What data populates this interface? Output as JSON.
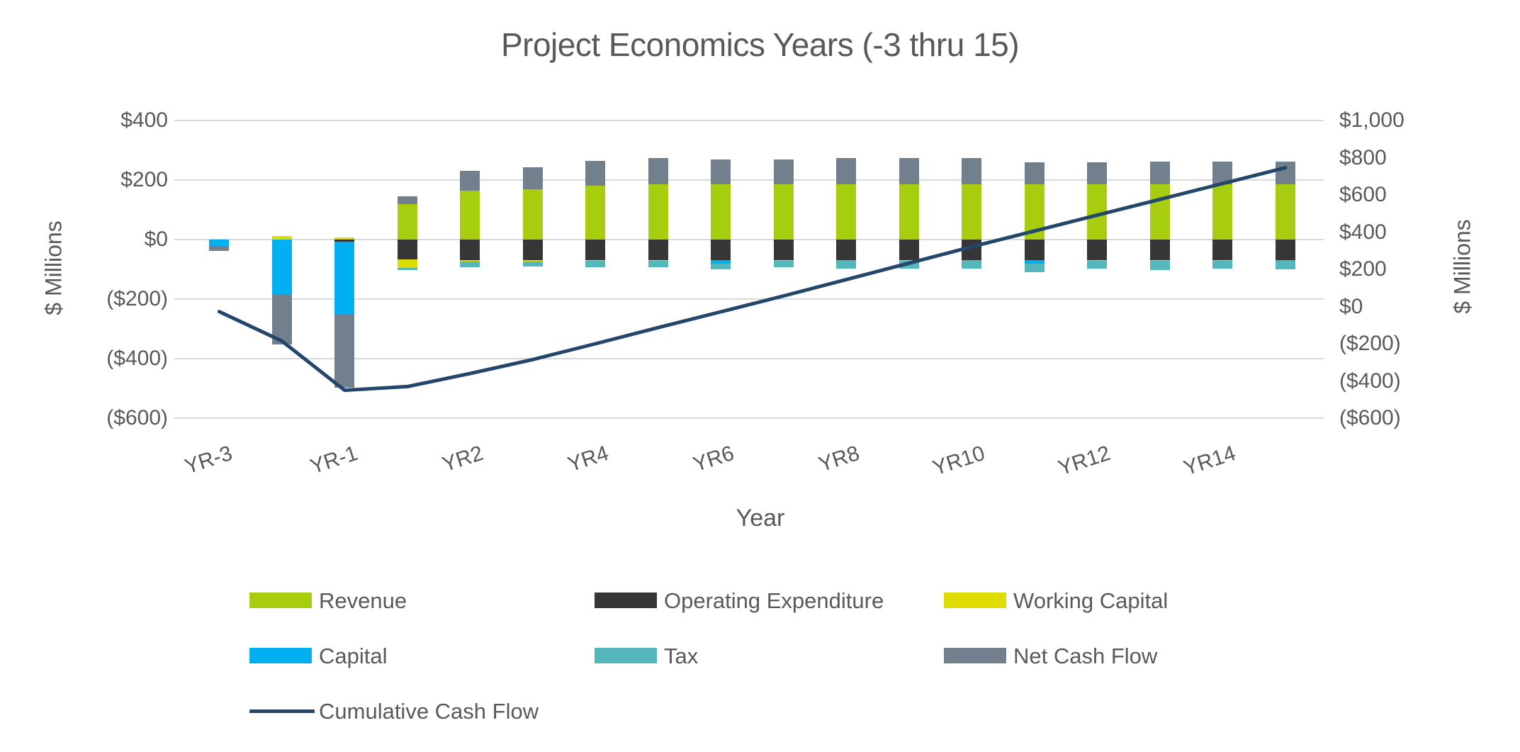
{
  "title": "Project Economics Years (-3 thru 15)",
  "chart_data": {
    "type": "bar",
    "subtype": "stacked-bar-with-line-combo",
    "title": "Project Economics Years (-3 thru 15)",
    "xlabel": "Year",
    "categories": [
      "YR-3",
      "YR-2",
      "YR-1",
      "YR1",
      "YR2",
      "YR3",
      "YR4",
      "YR5",
      "YR6",
      "YR7",
      "YR8",
      "YR9",
      "YR10",
      "YR11",
      "YR12",
      "YR13",
      "YR14",
      "YR15"
    ],
    "x_ticks_shown": [
      "YR-3",
      "YR-1",
      "YR2",
      "YR4",
      "YR6",
      "YR8",
      "YR10",
      "YR12",
      "YR14"
    ],
    "series": [
      {
        "name": "Revenue",
        "color": "#A6CE0E",
        "values": [
          0,
          0,
          0,
          120,
          165,
          170,
          180,
          185,
          185,
          185,
          185,
          185,
          185,
          185,
          185,
          185,
          185,
          185
        ]
      },
      {
        "name": "Operating Expenditure",
        "color": "#363636",
        "values": [
          0,
          0,
          -8,
          -67,
          -68,
          -70,
          -70,
          -70,
          -70,
          -70,
          -68,
          -70,
          -68,
          -70,
          -70,
          -70,
          -70,
          -68
        ]
      },
      {
        "name": "Working Capital",
        "color": "#DEDC00",
        "values": [
          0,
          12,
          6,
          -28,
          -5,
          -3,
          -2,
          -2,
          0,
          -2,
          -2,
          -2,
          -2,
          0,
          -2,
          -2,
          -2,
          -2
        ]
      },
      {
        "name": "Capital",
        "color": "#00B0F0",
        "values": [
          -22,
          -186,
          -245,
          0,
          0,
          0,
          0,
          0,
          -12,
          0,
          0,
          0,
          0,
          -12,
          0,
          0,
          0,
          0
        ]
      },
      {
        "name": "Tax",
        "color": "#54B7BC",
        "values": [
          0,
          0,
          0,
          -7,
          -19,
          -18,
          -22,
          -22,
          -18,
          -20,
          -28,
          -26,
          -28,
          -28,
          -26,
          -30,
          -26,
          -30
        ]
      },
      {
        "name": "Net Cash Flow",
        "color": "#72808D",
        "values": [
          -16,
          -166,
          -245,
          25,
          67,
          72,
          85,
          88,
          85,
          85,
          88,
          88,
          88,
          75,
          75,
          78,
          78,
          78
        ]
      }
    ],
    "line_series": {
      "name": "Cumulative Cash Flow",
      "color": "#24466B",
      "axis": "right",
      "values": [
        -27,
        -185,
        -450,
        -430,
        -360,
        -285,
        -200,
        -113,
        -28,
        57,
        145,
        233,
        321,
        406,
        491,
        576,
        661,
        746
      ]
    },
    "left_axis": {
      "title": "$ Millions",
      "min": -600,
      "max": 400,
      "tick_values": [
        400,
        200,
        0,
        -200,
        -400,
        -600
      ],
      "tick_labels": [
        "$400",
        "$200",
        "$0",
        "($200)",
        "($400)",
        "($600)"
      ]
    },
    "right_axis": {
      "title": "$ Millions",
      "min": -600,
      "max": 1000,
      "tick_values": [
        1000,
        800,
        600,
        400,
        200,
        0,
        -200,
        -400,
        -600
      ],
      "tick_labels": [
        "$1,000",
        "$800",
        "$600",
        "$400",
        "$200",
        "$0",
        "($200)",
        "($400)",
        "($600)"
      ]
    },
    "grid": true,
    "legend_position": "bottom",
    "legend": [
      {
        "label": "Revenue",
        "color": "#A6CE0E",
        "marker": "square"
      },
      {
        "label": "Operating Expenditure",
        "color": "#363636",
        "marker": "square"
      },
      {
        "label": "Working Capital",
        "color": "#DEDC00",
        "marker": "square"
      },
      {
        "label": "Capital",
        "color": "#00B0F0",
        "marker": "square"
      },
      {
        "label": "Tax",
        "color": "#54B7BC",
        "marker": "square"
      },
      {
        "label": "Net Cash Flow",
        "color": "#72808D",
        "marker": "square"
      },
      {
        "label": "Cumulative Cash Flow",
        "color": "#24466B",
        "marker": "line"
      }
    ],
    "colors": {
      "gridline": "#D9D9D9",
      "text": "#595959",
      "background": "#FFFFFF"
    }
  }
}
